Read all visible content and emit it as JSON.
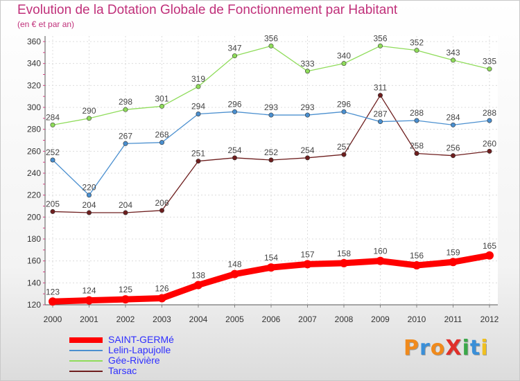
{
  "title": "Evolution de la Dotation Globale de Fonctionnement par Habitant",
  "subtitle": "(en € et par an)",
  "logo": {
    "text": "ProXiti",
    "letters": [
      "P",
      "r",
      "o",
      "X",
      "i",
      "t",
      "i"
    ],
    "colors": [
      "#f08a1c",
      "#3a8fd8",
      "#f08a1c",
      "#e0302a",
      "#3aa84a",
      "#3a8fd8",
      "#f0c020"
    ]
  },
  "chart_data": {
    "type": "line",
    "x": [
      "2000",
      "2001",
      "2002",
      "2003",
      "2004",
      "2005",
      "2006",
      "2007",
      "2008",
      "2009",
      "2010",
      "2011",
      "2012"
    ],
    "ylim": [
      120,
      360
    ],
    "yticks": [
      120,
      140,
      160,
      180,
      200,
      220,
      240,
      260,
      280,
      300,
      320,
      340,
      360
    ],
    "grid": true,
    "legend_position": "bottom-left",
    "series": [
      {
        "name": "SAINT-GERMé",
        "color": "#ff0000",
        "emphasis": "thick",
        "values": [
          123,
          124,
          125,
          126,
          138,
          148,
          154,
          157,
          158,
          160,
          156,
          159,
          165
        ]
      },
      {
        "name": "Lelin-Lapujolle",
        "color": "#4a8fcf",
        "emphasis": "normal",
        "values": [
          252,
          220,
          267,
          268,
          294,
          296,
          293,
          293,
          296,
          287,
          288,
          284,
          288
        ]
      },
      {
        "name": "Gée-Rivière",
        "color": "#8fdc5a",
        "emphasis": "normal",
        "values": [
          284,
          290,
          298,
          301,
          319,
          347,
          356,
          333,
          340,
          356,
          352,
          343,
          335
        ]
      },
      {
        "name": "Tarsac",
        "color": "#6e1e1e",
        "emphasis": "normal",
        "values": [
          205,
          204,
          204,
          206,
          251,
          254,
          252,
          254,
          257,
          311,
          258,
          256,
          260
        ]
      }
    ]
  }
}
